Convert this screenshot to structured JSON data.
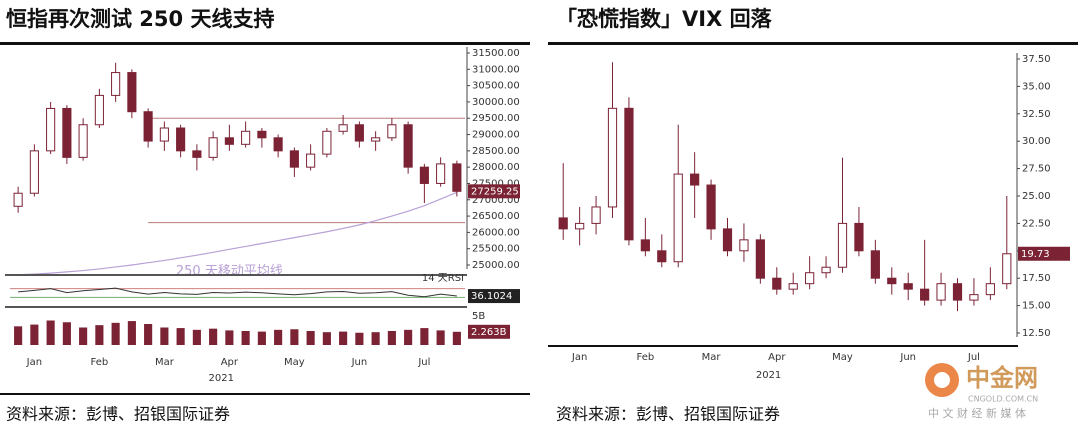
{
  "chart_data": [
    {
      "type": "candlestick",
      "title": "恒指再次测试 250 天线支持",
      "source": "资料来源：彭博、招银国际证券",
      "x_label": "2021",
      "categories": [
        null,
        "Jan",
        null,
        null,
        null,
        "Feb",
        null,
        null,
        null,
        "Mar",
        null,
        null,
        null,
        "Apr",
        null,
        null,
        null,
        "May",
        null,
        null,
        null,
        "Jun",
        null,
        null,
        null,
        "Jul",
        null,
        null
      ],
      "open": [
        26800,
        27200,
        28500,
        29800,
        28300,
        29300,
        30200,
        30900,
        29700,
        28800,
        29200,
        28500,
        28300,
        28900,
        28700,
        29100,
        28900,
        28500,
        28000,
        28400,
        29100,
        29300,
        28800,
        28900,
        29300,
        28000,
        27500,
        28100
      ],
      "high": [
        27400,
        28700,
        30000,
        29900,
        29500,
        30400,
        31200,
        31000,
        29800,
        29400,
        29300,
        28700,
        29100,
        29300,
        29400,
        29200,
        29000,
        28600,
        28700,
        29200,
        29600,
        29400,
        29100,
        29500,
        29400,
        28100,
        28300,
        28200
      ],
      "low": [
        26600,
        27100,
        28400,
        28100,
        28200,
        29200,
        30000,
        29500,
        28600,
        28500,
        28300,
        27900,
        28200,
        28500,
        28600,
        28600,
        28300,
        27700,
        27900,
        28300,
        29000,
        28600,
        28500,
        28800,
        27800,
        26900,
        27400,
        27100
      ],
      "close": [
        27200,
        28500,
        29800,
        28300,
        29300,
        30200,
        30900,
        29700,
        28800,
        29200,
        28500,
        28300,
        28900,
        28700,
        29100,
        28900,
        28500,
        28000,
        28400,
        29100,
        29300,
        28800,
        28900,
        29300,
        28000,
        27500,
        28100,
        27259.25
      ],
      "color": "#7b2335",
      "last_label": "27259.25",
      "ma": {
        "name": "250 天移动平均线",
        "color": "#b9a0d6",
        "values": [
          24700,
          24720,
          24750,
          24790,
          24830,
          24880,
          24940,
          25000,
          25070,
          25140,
          25220,
          25300,
          25390,
          25480,
          25570,
          25660,
          25750,
          25840,
          25930,
          26020,
          26120,
          26230,
          26360,
          26500,
          26650,
          26820,
          27020,
          27230
        ]
      },
      "reference_lines": [
        29500,
        26300
      ],
      "reference_color": "#b97a7a",
      "ylim": [
        25000,
        31500
      ],
      "yticks": [
        {
          "value": 25000,
          "label": "25000.00"
        },
        {
          "value": 25500,
          "label": "25500.00"
        },
        {
          "value": 26000,
          "label": "26000.00"
        },
        {
          "value": 26500,
          "label": "26500.00"
        },
        {
          "value": 27000,
          "label": "27000.00"
        },
        {
          "value": 27500,
          "label": "27500.00"
        },
        {
          "value": 28000,
          "label": "28000.00"
        },
        {
          "value": 28500,
          "label": "28500.00"
        },
        {
          "value": 29000,
          "label": "29000.00"
        },
        {
          "value": 29500,
          "label": "29500.00"
        },
        {
          "value": 30000,
          "label": "30000.00"
        },
        {
          "value": 30500,
          "label": "30500.00"
        },
        {
          "value": 31000,
          "label": "31000.00"
        },
        {
          "value": 31500,
          "label": "31500.00"
        }
      ],
      "rsi": {
        "name": "14 天RSI",
        "color": "#333333",
        "values": [
          55,
          62,
          70,
          52,
          60,
          66,
          72,
          55,
          45,
          52,
          46,
          44,
          52,
          50,
          54,
          51,
          46,
          42,
          47,
          55,
          57,
          49,
          51,
          56,
          40,
          33,
          45,
          36.1024
        ],
        "ylim": [
          0,
          100
        ],
        "last_label": "36.1024",
        "bands": [
          70,
          30
        ],
        "band_colors": [
          "#d08080",
          "#70b070"
        ]
      },
      "volume": {
        "color": "#7b2335",
        "values": [
          3.2,
          3.5,
          4.2,
          3.9,
          3.0,
          3.4,
          3.8,
          4.1,
          3.6,
          3.0,
          2.9,
          2.6,
          2.8,
          2.5,
          2.4,
          2.3,
          2.6,
          2.7,
          2.4,
          2.2,
          2.3,
          2.1,
          2.2,
          2.4,
          2.6,
          2.9,
          2.5,
          2.263
        ],
        "ylim": [
          0,
          6
        ],
        "yticks": [
          {
            "value": 5,
            "label": "5B"
          }
        ],
        "last_label": "2.263B"
      }
    },
    {
      "type": "candlestick",
      "title": "「恐慌指数」VIX 回落",
      "source": "资料来源：彭博、招银国际证券",
      "x_label": "2021",
      "categories": [
        null,
        "Jan",
        null,
        null,
        null,
        "Feb",
        null,
        null,
        null,
        "Mar",
        null,
        null,
        null,
        "Apr",
        null,
        null,
        null,
        "May",
        null,
        null,
        null,
        "Jun",
        null,
        null,
        null,
        "Jul",
        null,
        null
      ],
      "open": [
        23,
        22,
        22.5,
        24,
        33,
        21,
        20,
        19,
        27,
        26,
        22,
        20,
        21,
        17.5,
        16.5,
        17,
        18,
        18.5,
        22.5,
        20,
        17.5,
        17,
        16.5,
        15.5,
        17,
        15.5,
        16,
        17
      ],
      "high": [
        28,
        24,
        25,
        37.2,
        34,
        23,
        21.5,
        31.5,
        29,
        26.5,
        23,
        22.5,
        21.5,
        18.5,
        18,
        19.5,
        19.5,
        28.5,
        24,
        21,
        18.5,
        18,
        21,
        18,
        17.5,
        17.5,
        18.5,
        25
      ],
      "low": [
        21,
        20.5,
        21.5,
        23,
        20.5,
        19.5,
        18.5,
        18.5,
        23,
        21,
        19.5,
        19,
        17,
        16,
        16,
        16.5,
        17.5,
        18,
        19.5,
        17,
        16,
        15.5,
        15,
        15,
        14.5,
        15,
        15.5,
        16.5
      ],
      "close": [
        22,
        22.5,
        24,
        33,
        21,
        20,
        19,
        27,
        26,
        22,
        20,
        21,
        17.5,
        16.5,
        17,
        18,
        18.5,
        22.5,
        20,
        17.5,
        17,
        16.5,
        15.5,
        17,
        15.5,
        16,
        17,
        19.73
      ],
      "color": "#7b2335",
      "last_label": "19.73",
      "ylim": [
        12.5,
        37.5
      ],
      "yticks": [
        {
          "value": 12.5,
          "label": "12.50"
        },
        {
          "value": 15,
          "label": "15.00"
        },
        {
          "value": 17.5,
          "label": "17.50"
        },
        {
          "value": 20,
          "label": "20.00"
        },
        {
          "value": 22.5,
          "label": "22.50"
        },
        {
          "value": 25,
          "label": "25.00"
        },
        {
          "value": 27.5,
          "label": "27.50"
        },
        {
          "value": 30,
          "label": "30.00"
        },
        {
          "value": 32.5,
          "label": "32.50"
        },
        {
          "value": 35,
          "label": "35.00"
        },
        {
          "value": 37.5,
          "label": "37.50"
        }
      ]
    }
  ],
  "watermark": {
    "logo": "中金网",
    "url": "CNGOLD.COM.CN",
    "tagline": "中 文 财 经 新 媒 体"
  }
}
